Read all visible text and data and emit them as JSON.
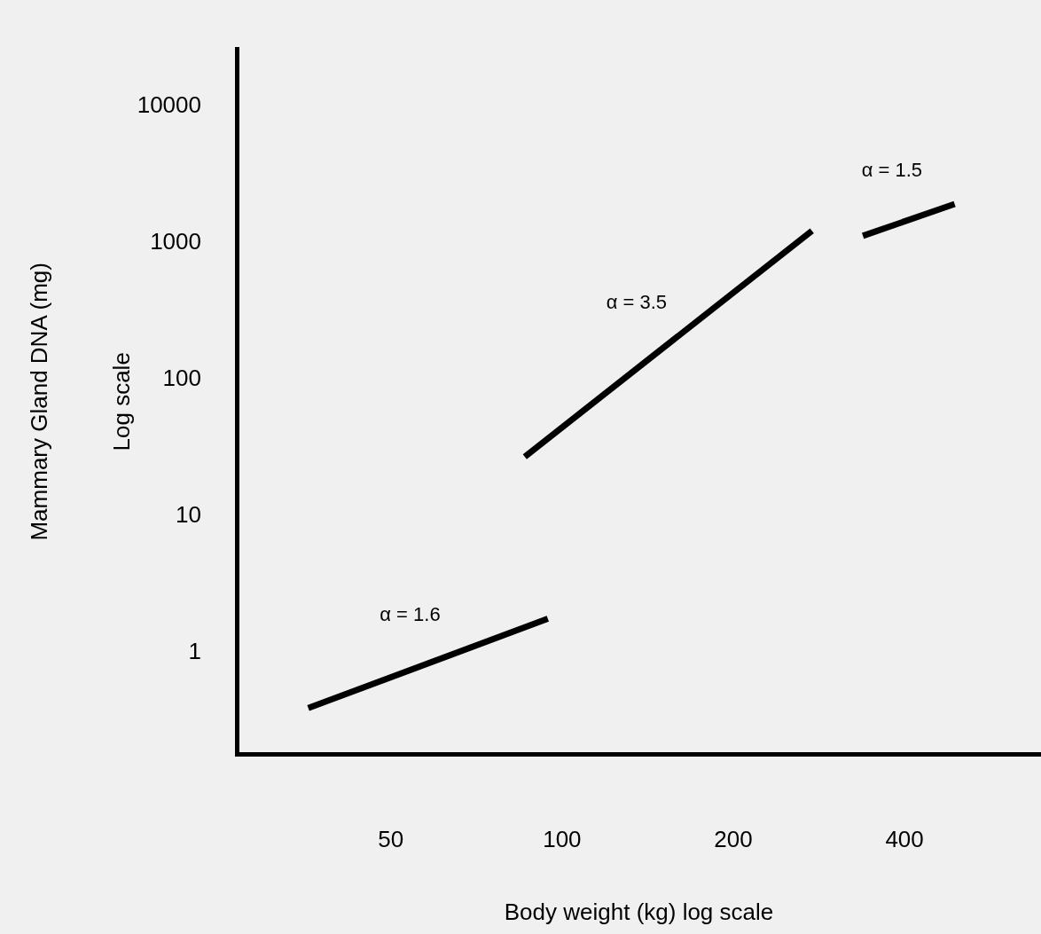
{
  "chart_data": {
    "type": "line",
    "xlabel": "Body weight (kg) log scale",
    "ylabel": "Mammary Gland DNA (mg)\nLog scale",
    "log": "xy",
    "grid": false,
    "legend": false,
    "marker": "none",
    "line_style": "solid",
    "xlim": [
      26.8,
      695
    ],
    "xticks": [
      50,
      100,
      200,
      400
    ],
    "ylim": [
      0.18,
      26000
    ],
    "yticks": [
      1,
      10,
      100,
      1000,
      10000
    ],
    "series": [
      {
        "name": "α = 1.6",
        "color": "#000000",
        "x": [
          35.8,
          94.4
        ],
        "values": [
          0.39,
          1.76
        ]
      },
      {
        "name": "α = 3.5",
        "color": "#000000",
        "x": [
          86,
          275
        ],
        "values": [
          27,
          1219
        ]
      },
      {
        "name": "α = 1.5",
        "color": "#000000",
        "x": [
          338,
          490
        ],
        "values": [
          1120,
          1915
        ]
      }
    ]
  }
}
